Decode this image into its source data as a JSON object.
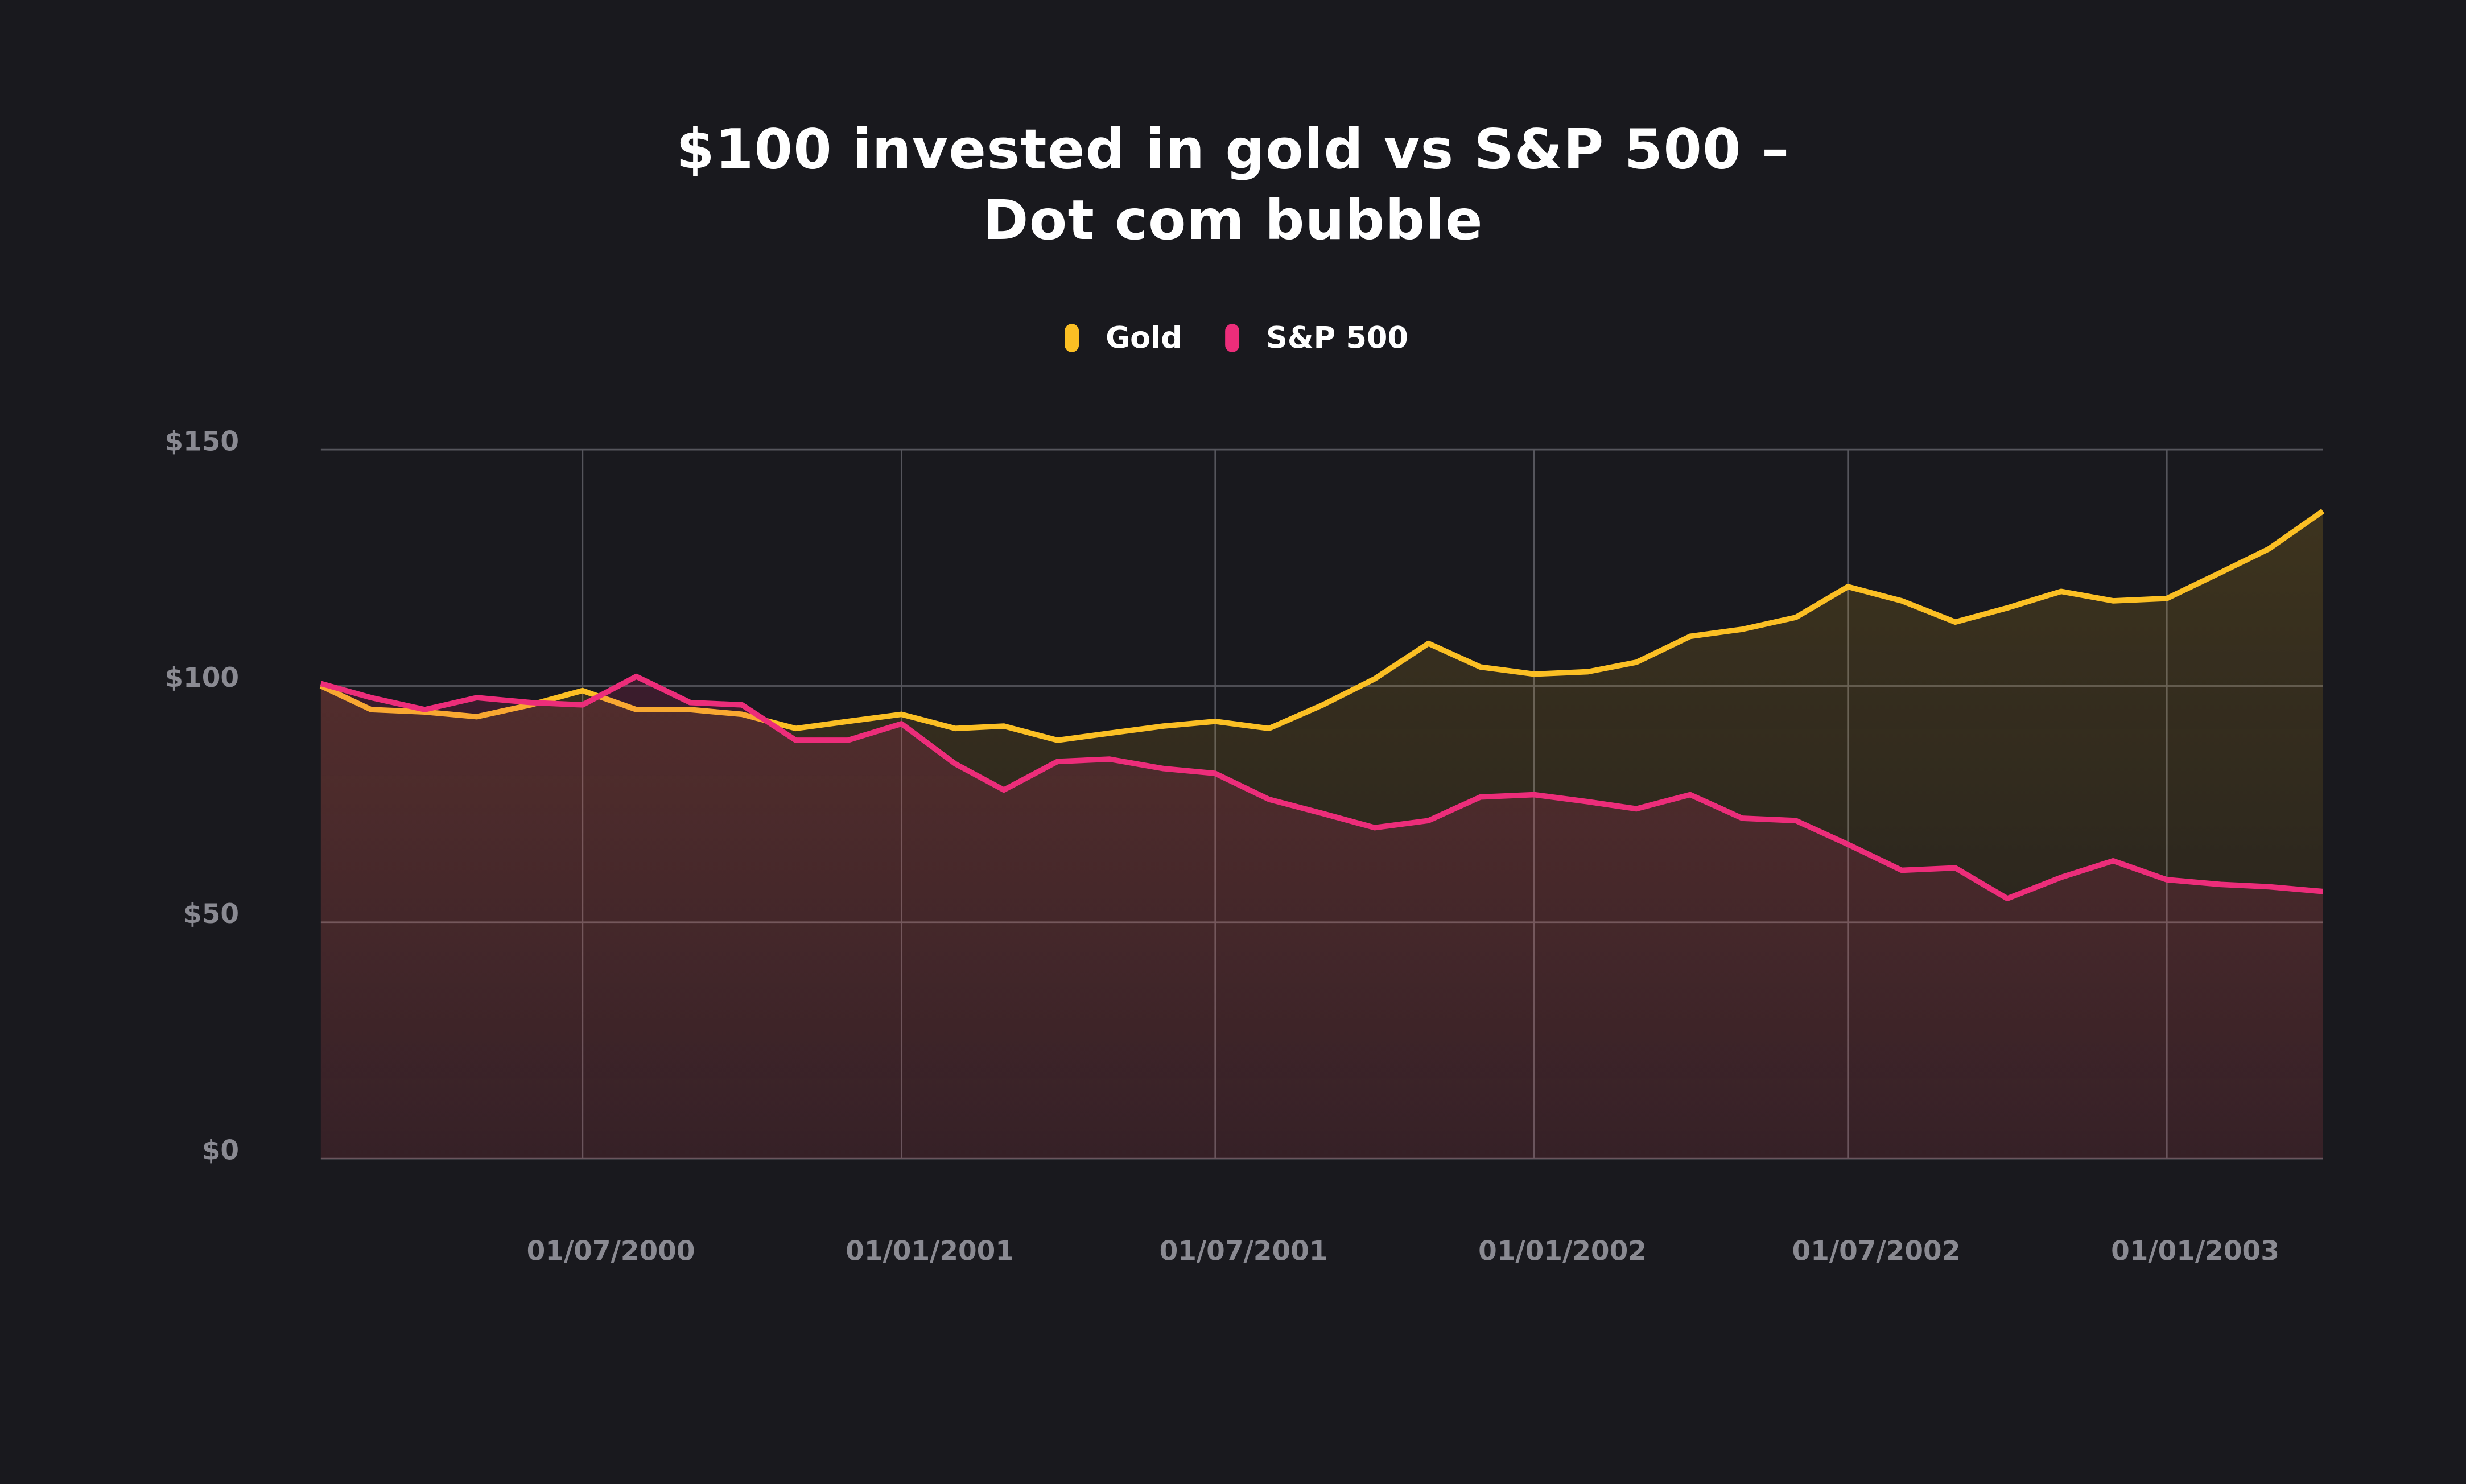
{
  "chart_data": {
    "type": "line",
    "title": "$100 invested in gold vs S&P 500 –\nDot com bubble",
    "x": [
      "01/02/2000",
      "01/03/2000",
      "01/04/2000",
      "01/05/2000",
      "01/06/2000",
      "01/07/2000",
      "01/08/2000",
      "01/09/2000",
      "01/10/2000",
      "01/11/2000",
      "01/12/2000",
      "01/01/2001",
      "01/02/2001",
      "01/03/2001",
      "01/04/2001",
      "01/05/2001",
      "01/06/2001",
      "01/07/2001",
      "01/08/2001",
      "01/09/2001",
      "01/10/2001",
      "01/11/2001",
      "01/12/2001",
      "01/01/2002",
      "01/02/2002",
      "01/03/2002",
      "01/04/2002",
      "01/05/2002",
      "01/06/2002",
      "01/07/2002",
      "01/08/2002",
      "01/09/2002",
      "01/10/2002",
      "01/11/2002",
      "01/12/2002",
      "01/01/2003",
      "01/02/2003",
      "01/03/2003",
      "01/04/2003"
    ],
    "series": [
      {
        "name": "Gold",
        "color": "#fbbf24",
        "values": [
          100,
          95,
          94.5,
          93.5,
          96,
          99,
          95,
          95,
          94,
          91,
          92.5,
          94,
          91,
          91.5,
          88.5,
          90,
          91.5,
          92.5,
          91,
          96,
          101.5,
          109,
          104,
          102.5,
          103,
          105,
          110.5,
          112,
          114.5,
          121,
          118,
          113.5,
          116.5,
          120,
          118,
          118.5,
          124,
          129,
          137
        ]
      },
      {
        "name": "S&P 500",
        "color": "#ec2d7a",
        "values": [
          100.5,
          97.5,
          95,
          97.5,
          96.5,
          96,
          102,
          96.5,
          96,
          88.5,
          88.5,
          92,
          83.5,
          78,
          84,
          84.5,
          82.5,
          81.5,
          76,
          73,
          70,
          71.5,
          76.5,
          77,
          75.5,
          74,
          77,
          72,
          71.5,
          66.5,
          61,
          61.5,
          55,
          59.5,
          63,
          59,
          58,
          57.5,
          56.5
        ]
      }
    ],
    "xlim": [
      "01/02/2000",
      "01/04/2003"
    ],
    "xticks": [
      "01/07/2000",
      "01/01/2001",
      "01/07/2001",
      "01/01/2002",
      "01/07/2002",
      "01/01/2003"
    ],
    "ylim": [
      0,
      150
    ],
    "yticks": [
      {
        "value": 0,
        "label": "$0"
      },
      {
        "value": 50,
        "label": "$50"
      },
      {
        "value": 100,
        "label": "$100"
      },
      {
        "value": 150,
        "label": "$150"
      }
    ],
    "grid": true,
    "legend": "top"
  }
}
